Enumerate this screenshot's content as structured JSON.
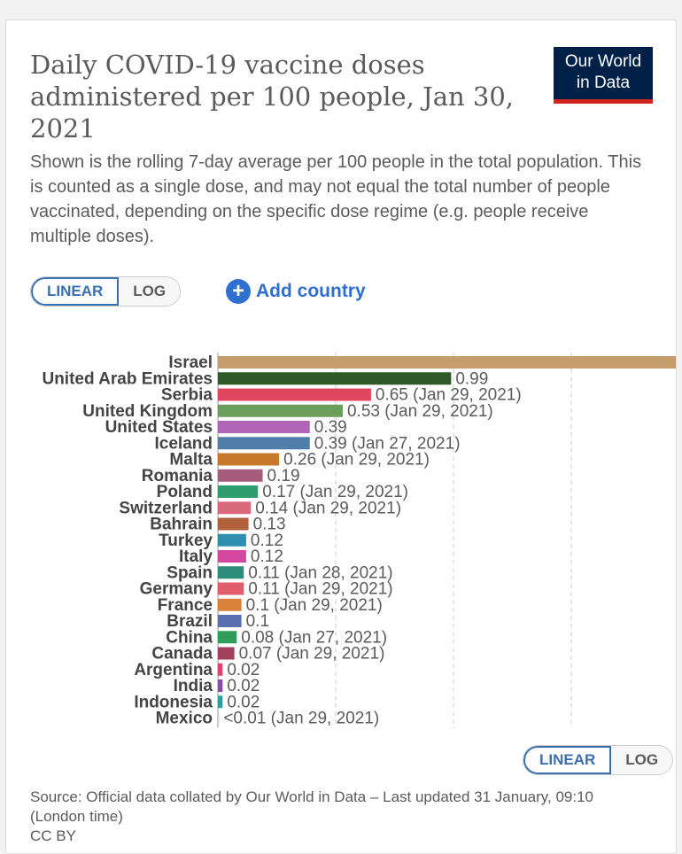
{
  "title": "Daily COVID-19 vaccine doses administered per 100 people, Jan 30, 2021",
  "subtitle": "Shown is the rolling 7-day average per 100 people in the total population. This is counted as a single dose, and may not equal the total number of people vaccinated, depending on the specific dose regime (e.g. people receive multiple doses).",
  "logo": {
    "line1": "Our World",
    "line2": "in Data"
  },
  "controls": {
    "linear": "LINEAR",
    "log": "LOG",
    "add_country": "Add country",
    "plus_glyph": "+"
  },
  "source": "Source: Official data collated by Our World in Data – Last updated 31 January, 09:10 (London time)",
  "license": "CC BY",
  "colors": {
    "accent": "#3a6fb0",
    "logo_bg": "#002147",
    "logo_red": "#ce261e",
    "grid": "#cccccc"
  },
  "chart_data": {
    "type": "bar",
    "orientation": "horizontal",
    "xlim": [
      0,
      2
    ],
    "x_ticks": [
      "0",
      "0.5",
      "1",
      "1.5"
    ],
    "x_tick_values": [
      0,
      0.5,
      1,
      1.5
    ],
    "grid": true,
    "bars": [
      {
        "label": "Israel",
        "value": 2,
        "display": "2",
        "color": "#c69c6d"
      },
      {
        "label": "United Arab Emirates",
        "value": 0.99,
        "display": "0.99",
        "color": "#2d5a27"
      },
      {
        "label": "Serbia",
        "value": 0.65,
        "display": "0.65 (Jan 29, 2021)",
        "color": "#e0475e"
      },
      {
        "label": "United Kingdom",
        "value": 0.53,
        "display": "0.53 (Jan 29, 2021)",
        "color": "#6a9e5a"
      },
      {
        "label": "United States",
        "value": 0.39,
        "display": "0.39",
        "color": "#b065b7"
      },
      {
        "label": "Iceland",
        "value": 0.39,
        "display": "0.39 (Jan 27, 2021)",
        "color": "#4f7fa8"
      },
      {
        "label": "Malta",
        "value": 0.26,
        "display": "0.26 (Jan 29, 2021)",
        "color": "#c8782b"
      },
      {
        "label": "Romania",
        "value": 0.19,
        "display": "0.19",
        "color": "#a65a7c"
      },
      {
        "label": "Poland",
        "value": 0.17,
        "display": "0.17 (Jan 29, 2021)",
        "color": "#2e9e6e"
      },
      {
        "label": "Switzerland",
        "value": 0.14,
        "display": "0.14 (Jan 29, 2021)",
        "color": "#d96a7c"
      },
      {
        "label": "Bahrain",
        "value": 0.13,
        "display": "0.13",
        "color": "#b0603a"
      },
      {
        "label": "Turkey",
        "value": 0.12,
        "display": "0.12",
        "color": "#2f8db0"
      },
      {
        "label": "Italy",
        "value": 0.12,
        "display": "0.12",
        "color": "#d447a0"
      },
      {
        "label": "Spain",
        "value": 0.11,
        "display": "0.11 (Jan 28, 2021)",
        "color": "#2e8d7a"
      },
      {
        "label": "Germany",
        "value": 0.11,
        "display": "0.11 (Jan 29, 2021)",
        "color": "#e05d6b"
      },
      {
        "label": "France",
        "value": 0.1,
        "display": "0.1 (Jan 29, 2021)",
        "color": "#d9803a"
      },
      {
        "label": "Brazil",
        "value": 0.1,
        "display": "0.1",
        "color": "#5a6fb0"
      },
      {
        "label": "China",
        "value": 0.08,
        "display": "0.08 (Jan 27, 2021)",
        "color": "#2e9e5a"
      },
      {
        "label": "Canada",
        "value": 0.07,
        "display": "0.07 (Jan 29, 2021)",
        "color": "#a0405a"
      },
      {
        "label": "Argentina",
        "value": 0.02,
        "display": "0.02",
        "color": "#e0406e"
      },
      {
        "label": "India",
        "value": 0.02,
        "display": "0.02",
        "color": "#8a4aa8"
      },
      {
        "label": "Indonesia",
        "value": 0.02,
        "display": "0.02",
        "color": "#2e9ea0"
      },
      {
        "label": "Mexico",
        "value": 0.005,
        "display": "<0.01 (Jan 29, 2021)",
        "color": "#cfcfcf"
      }
    ]
  }
}
